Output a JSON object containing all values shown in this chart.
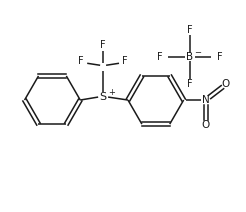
{
  "bg_color": "#ffffff",
  "line_color": "#1a1a1a",
  "text_color": "#1a1a1a",
  "line_width": 1.1,
  "figsize": [
    2.46,
    2.12
  ],
  "dpi": 100,
  "xlim": [
    0,
    246
  ],
  "ylim": [
    0,
    212
  ]
}
